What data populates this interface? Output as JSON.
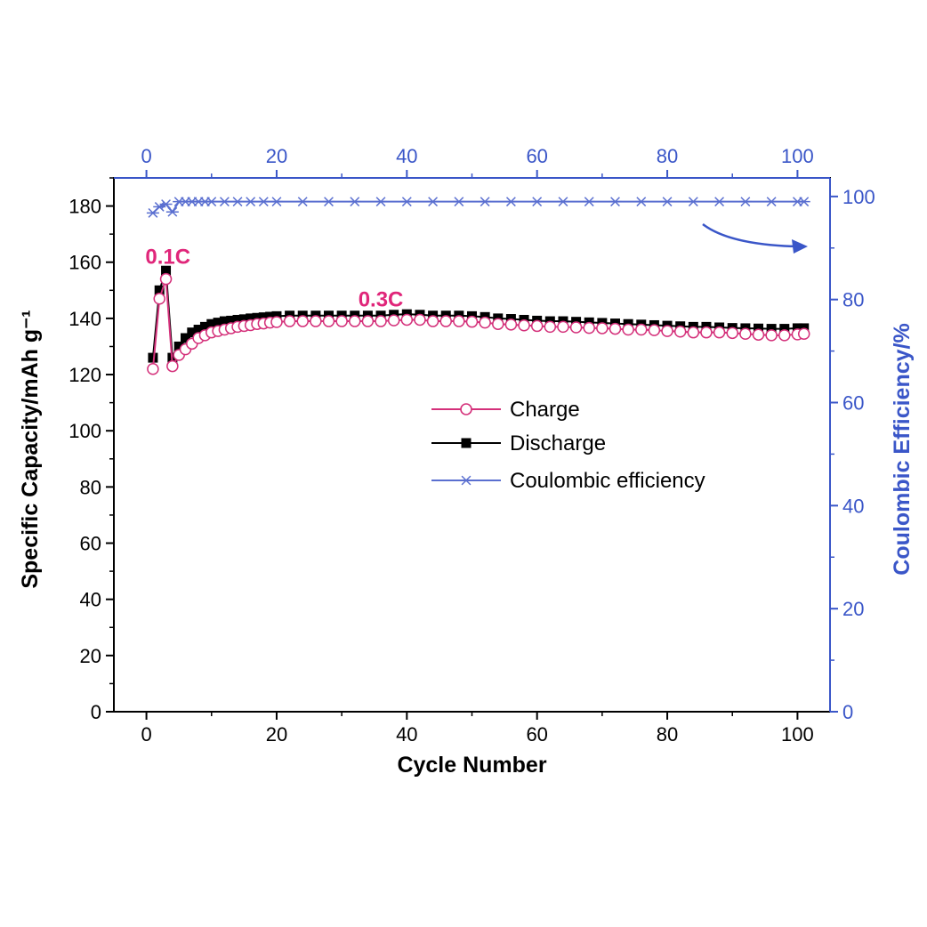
{
  "chart_data": {
    "type": "line",
    "xlabel": "Cycle Number",
    "ylabel": "Specific Capacity/mAh g⁻¹",
    "y2label": "Coulombic Efficiency/%",
    "xlim": [
      -5,
      105
    ],
    "ylim": [
      0,
      190
    ],
    "y2lim": [
      0,
      103.6
    ],
    "x_ticks": [
      "0",
      "20",
      "40",
      "60",
      "80",
      "100"
    ],
    "x_tick_values": [
      0,
      20,
      40,
      60,
      80,
      100
    ],
    "y_ticks": [
      "0",
      "20",
      "40",
      "60",
      "80",
      "100",
      "120",
      "140",
      "160",
      "180"
    ],
    "y_tick_values": [
      0,
      20,
      40,
      60,
      80,
      100,
      120,
      140,
      160,
      180
    ],
    "y2_ticks": [
      "0",
      "20",
      "40",
      "60",
      "80",
      "100"
    ],
    "y2_tick_values": [
      0,
      20,
      40,
      60,
      80,
      100
    ],
    "annotations": [
      {
        "text": "0.1C",
        "x": 3.3,
        "y": 162
      },
      {
        "text": "0.3C",
        "x": 36,
        "y": 141
      }
    ],
    "colors": {
      "charge": "#d4307a",
      "discharge": "#000000",
      "coulombic": "#5a6fd0",
      "right_axis": "#3a56c8",
      "annotation": "#e0267a"
    },
    "legend": {
      "placement": "center-right",
      "entries": [
        "Charge",
        "Discharge",
        "Coulombic efficiency"
      ]
    },
    "series": [
      {
        "name": "Charge",
        "axis": "left",
        "marker": "open-circle",
        "x": [
          1,
          2,
          3,
          4,
          5,
          6,
          7,
          8,
          9,
          10,
          11,
          12,
          13,
          14,
          15,
          16,
          17,
          18,
          19,
          20,
          22,
          24,
          26,
          28,
          30,
          32,
          34,
          36,
          38,
          40,
          42,
          44,
          46,
          48,
          50,
          52,
          54,
          56,
          58,
          60,
          62,
          64,
          66,
          68,
          70,
          72,
          74,
          76,
          78,
          80,
          82,
          84,
          86,
          88,
          90,
          92,
          94,
          96,
          98,
          100,
          101
        ],
        "y": [
          122,
          147,
          154,
          123,
          127,
          129,
          131,
          133,
          134,
          135,
          135.5,
          136,
          136.5,
          137,
          137.3,
          137.6,
          138,
          138.2,
          138.5,
          138.7,
          139,
          139,
          139,
          139,
          139,
          139,
          139,
          139,
          139.3,
          139.5,
          139.5,
          139,
          139,
          139,
          138.8,
          138.5,
          138,
          137.8,
          137.5,
          137.3,
          137,
          137,
          136.8,
          136.6,
          136.5,
          136.3,
          136,
          136,
          135.8,
          135.5,
          135.3,
          135,
          135,
          135,
          134.8,
          134.5,
          134.2,
          134,
          134,
          134.3,
          134.5
        ]
      },
      {
        "name": "Discharge",
        "axis": "left",
        "marker": "filled-square",
        "x": [
          1,
          2,
          3,
          4,
          5,
          6,
          7,
          8,
          9,
          10,
          11,
          12,
          13,
          14,
          15,
          16,
          17,
          18,
          19,
          20,
          22,
          24,
          26,
          28,
          30,
          32,
          34,
          36,
          38,
          40,
          42,
          44,
          46,
          48,
          50,
          52,
          54,
          56,
          58,
          60,
          62,
          64,
          66,
          68,
          70,
          72,
          74,
          76,
          78,
          80,
          82,
          84,
          86,
          88,
          90,
          92,
          94,
          96,
          98,
          100,
          101
        ],
        "y": [
          126,
          150,
          157,
          126,
          130,
          133,
          135,
          136,
          137,
          138,
          138.5,
          139,
          139.2,
          139.5,
          139.7,
          140,
          140.2,
          140.4,
          140.6,
          140.8,
          141,
          141,
          141,
          141,
          141,
          141,
          141,
          141,
          141.3,
          141.5,
          141.3,
          141,
          141,
          141,
          140.8,
          140.5,
          140,
          139.8,
          139.5,
          139.2,
          139,
          139,
          138.8,
          138.6,
          138.4,
          138.2,
          138,
          137.8,
          137.6,
          137.4,
          137.2,
          137,
          137,
          136.8,
          136.6,
          136.5,
          136.4,
          136.3,
          136.3,
          136.5,
          136.5
        ]
      },
      {
        "name": "Coulombic efficiency",
        "axis": "right",
        "marker": "asterisk",
        "x": [
          1,
          2,
          3,
          4,
          5,
          6,
          7,
          8,
          9,
          10,
          12,
          14,
          16,
          18,
          20,
          24,
          28,
          32,
          36,
          40,
          44,
          48,
          52,
          56,
          60,
          64,
          68,
          72,
          76,
          80,
          84,
          88,
          92,
          96,
          100,
          101
        ],
        "y": [
          96.8,
          98,
          98.5,
          97,
          99,
          99,
          99,
          99,
          99,
          99,
          99,
          99,
          99,
          99,
          99,
          99,
          99,
          99,
          99,
          99,
          99,
          99,
          99,
          99,
          99,
          99,
          99,
          99,
          99,
          99,
          99,
          99,
          99,
          99,
          99,
          99
        ]
      }
    ]
  }
}
